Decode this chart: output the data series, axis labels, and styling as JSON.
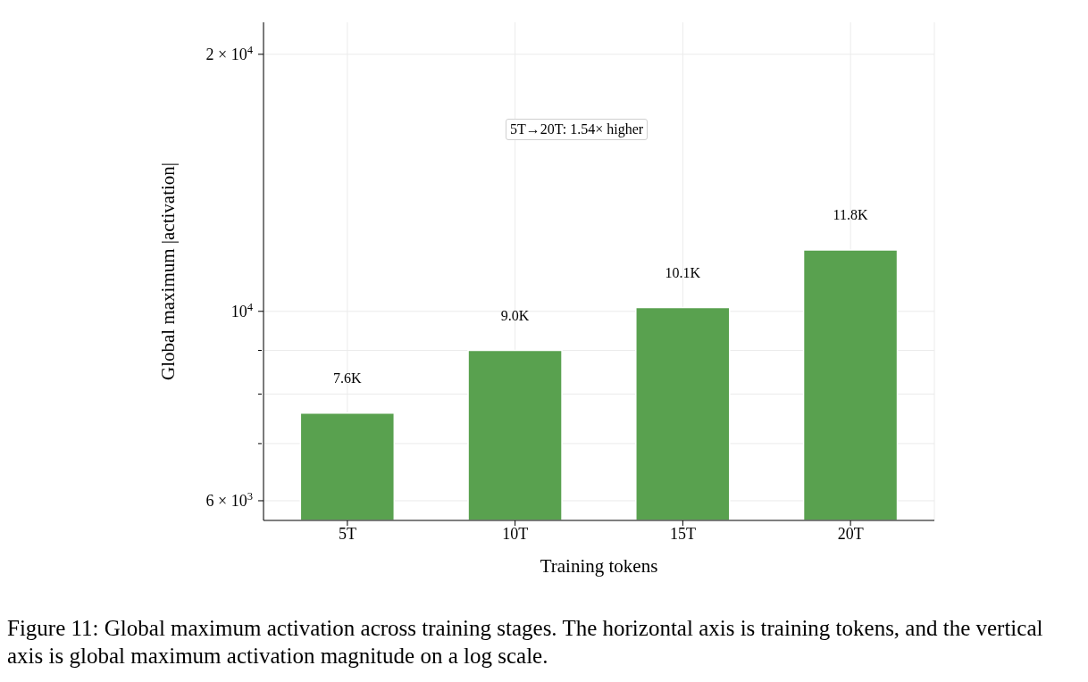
{
  "chart_data": {
    "type": "bar",
    "xlabel": "Training tokens",
    "ylabel": "Global maximum |activation|",
    "categories": [
      "5T",
      "10T",
      "15T",
      "20T"
    ],
    "values": [
      7600,
      9000,
      10100,
      11800
    ],
    "value_labels": [
      "7.6K",
      "9.0K",
      "10.1K",
      "11.8K"
    ],
    "color": "#59a14f",
    "log": true,
    "ylim": [
      5690,
      21800
    ],
    "yticks": [
      {
        "value": 6000,
        "label": "6 × 10$^{3}$"
      },
      {
        "value": 7000,
        "label": null
      },
      {
        "value": 8000,
        "label": null
      },
      {
        "value": 9000,
        "label": null
      },
      {
        "value": 10000,
        "label": "10$^{4}$"
      },
      {
        "value": 20000,
        "label": "2 × 10$^{4}$"
      }
    ],
    "grid": true,
    "annotations": [
      "5T→20T: 1.54× higher",
      "Figure 11: Global maximum activation across training stages. The horizontal axis is training tokens, and the vertical axis is global maximum activation magnitude on a log scale."
    ]
  }
}
